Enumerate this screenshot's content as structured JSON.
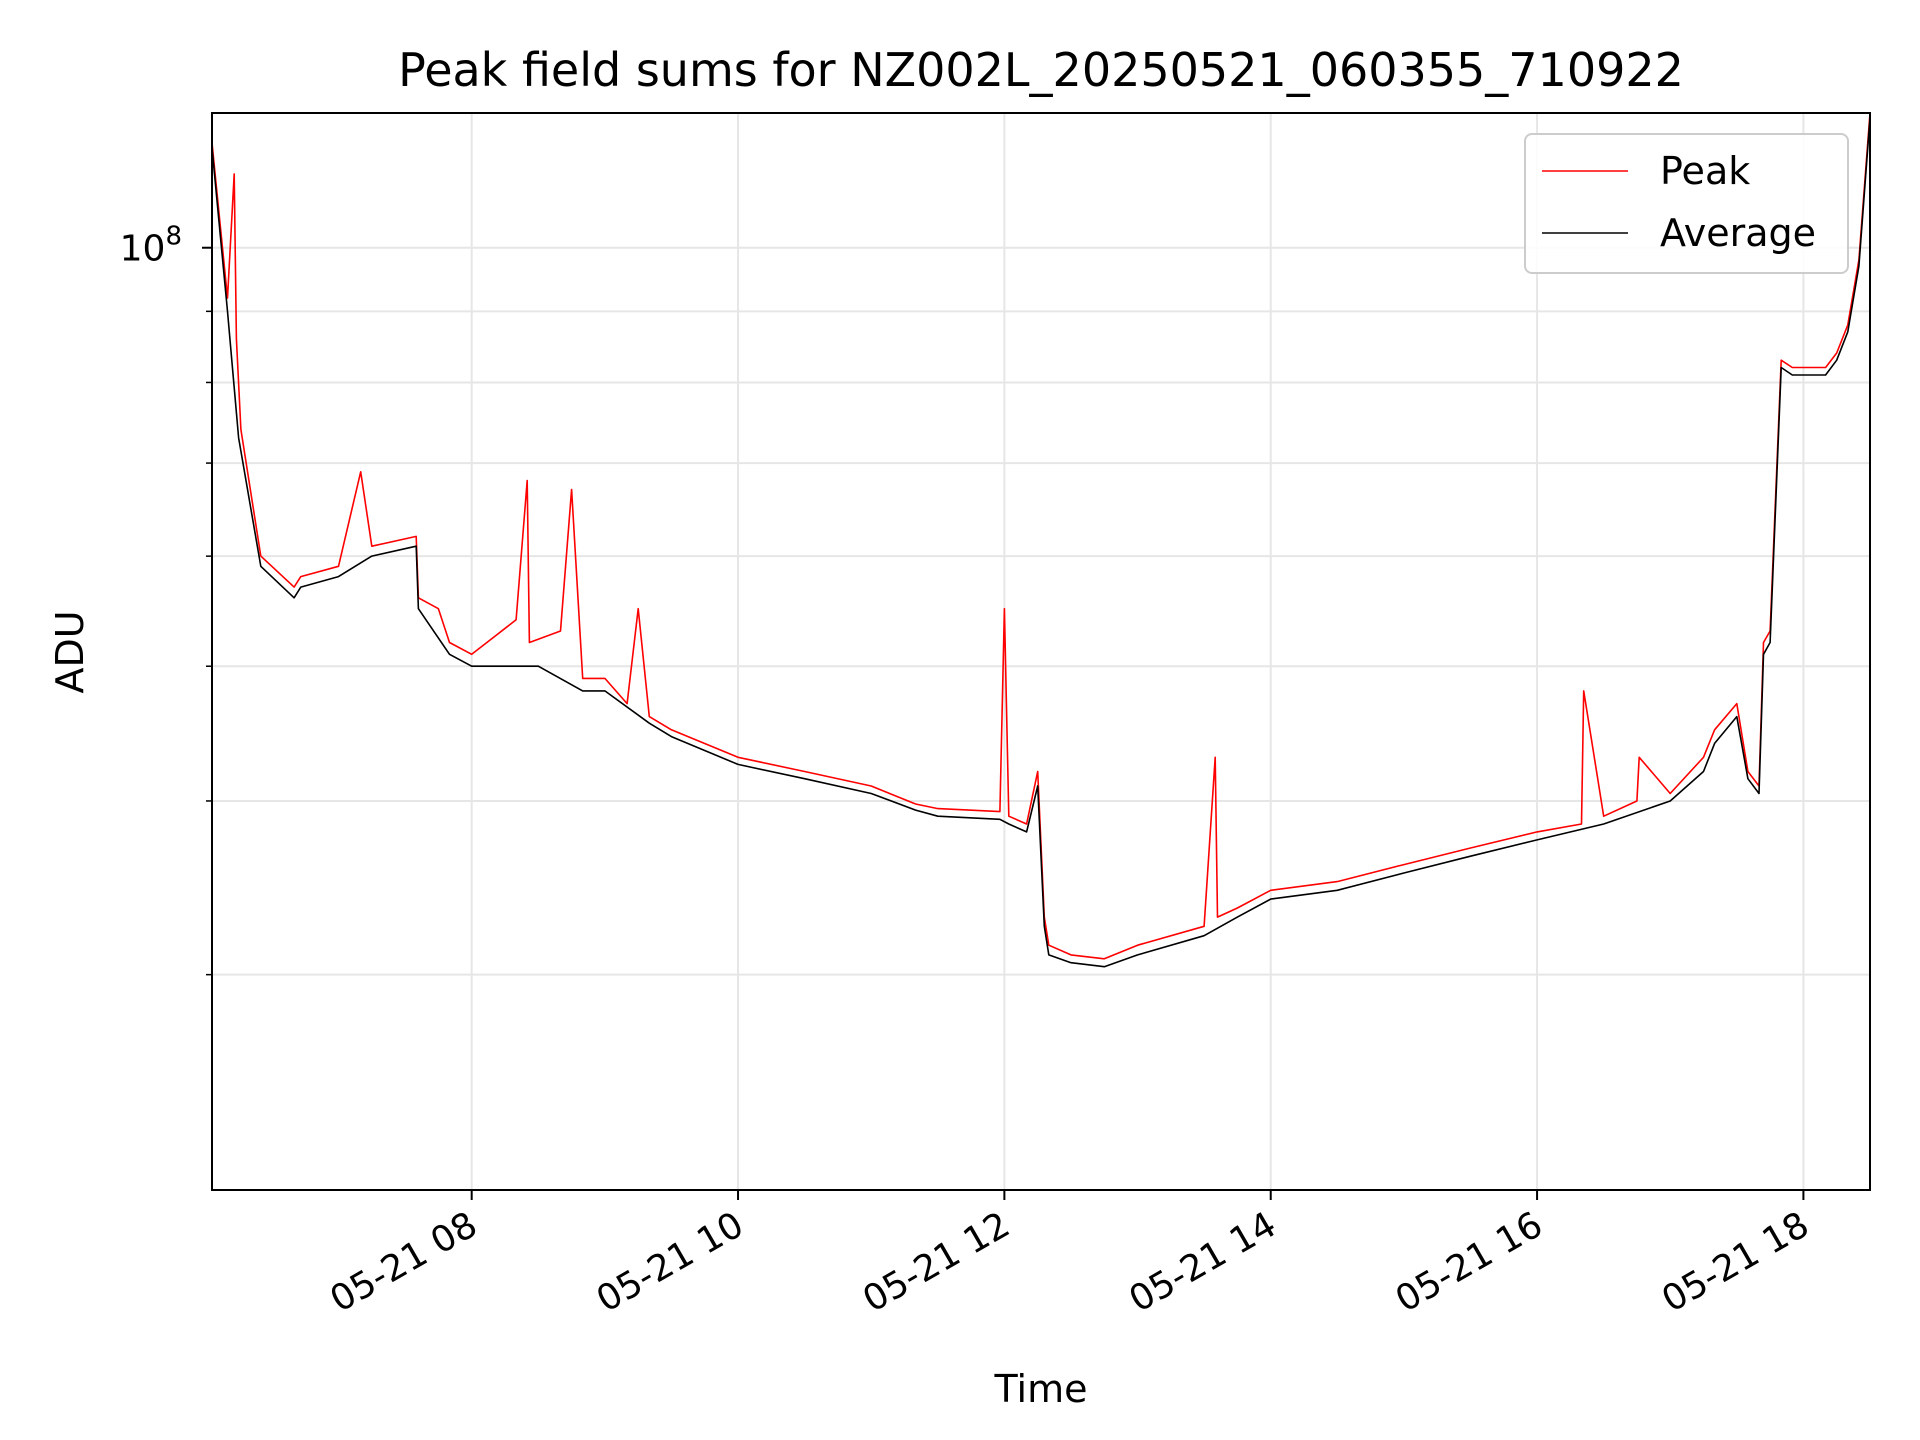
{
  "chart_data": {
    "type": "line",
    "title": "Peak field sums for NZ002L_20250521_060355_710922",
    "xlabel": "Time",
    "ylabel": "ADU",
    "yscale": "log",
    "grid": true,
    "legend_position": "top-right",
    "xlim": [
      "2025-05-21 06:03",
      "2025-05-21 18:30"
    ],
    "ylim": [
      21000000,
      125000000
    ],
    "x_ticks": [
      "05-21 08",
      "05-21 10",
      "05-21 12",
      "05-21 14",
      "05-21 16",
      "05-21 18"
    ],
    "x_tick_values": [
      "2025-05-21 08:00",
      "2025-05-21 10:00",
      "2025-05-21 12:00",
      "2025-05-21 14:00",
      "2025-05-21 16:00",
      "2025-05-21 18:00"
    ],
    "y_major_ticks": [
      {
        "value": 100000000,
        "base": "10",
        "exp": "8"
      }
    ],
    "y_minor_ticks": [
      30000000,
      40000000,
      50000000,
      60000000,
      70000000,
      80000000,
      90000000
    ],
    "series": [
      {
        "name": "Peak",
        "color": "#ff0000",
        "x": [
          "2025-05-21 06:03",
          "2025-05-21 06:10",
          "2025-05-21 06:13",
          "2025-05-21 06:14",
          "2025-05-21 06:16",
          "2025-05-21 06:25",
          "2025-05-21 06:40",
          "2025-05-21 06:43",
          "2025-05-21 07:00",
          "2025-05-21 07:10",
          "2025-05-21 07:15",
          "2025-05-21 07:35",
          "2025-05-21 07:36",
          "2025-05-21 07:45",
          "2025-05-21 07:50",
          "2025-05-21 08:00",
          "2025-05-21 08:20",
          "2025-05-21 08:25",
          "2025-05-21 08:26",
          "2025-05-21 08:40",
          "2025-05-21 08:45",
          "2025-05-21 08:50",
          "2025-05-21 09:00",
          "2025-05-21 09:10",
          "2025-05-21 09:15",
          "2025-05-21 09:20",
          "2025-05-21 09:30",
          "2025-05-21 10:00",
          "2025-05-21 10:30",
          "2025-05-21 11:00",
          "2025-05-21 11:20",
          "2025-05-21 11:30",
          "2025-05-21 11:58",
          "2025-05-21 12:00",
          "2025-05-21 12:02",
          "2025-05-21 12:10",
          "2025-05-21 12:15",
          "2025-05-21 12:18",
          "2025-05-21 12:20",
          "2025-05-21 12:30",
          "2025-05-21 12:45",
          "2025-05-21 13:00",
          "2025-05-21 13:30",
          "2025-05-21 13:35",
          "2025-05-21 13:36",
          "2025-05-21 13:45",
          "2025-05-21 14:00",
          "2025-05-21 14:30",
          "2025-05-21 15:00",
          "2025-05-21 15:30",
          "2025-05-21 16:00",
          "2025-05-21 16:20",
          "2025-05-21 16:21",
          "2025-05-21 16:30",
          "2025-05-21 16:45",
          "2025-05-21 16:46",
          "2025-05-21 17:00",
          "2025-05-21 17:15",
          "2025-05-21 17:20",
          "2025-05-21 17:30",
          "2025-05-21 17:35",
          "2025-05-21 17:40",
          "2025-05-21 17:42",
          "2025-05-21 17:45",
          "2025-05-21 17:50",
          "2025-05-21 17:55",
          "2025-05-21 18:00",
          "2025-05-21 18:05",
          "2025-05-21 18:10",
          "2025-05-21 18:15",
          "2025-05-21 18:20",
          "2025-05-21 18:25",
          "2025-05-21 18:30"
        ],
        "y": [
          119000000,
          92000000,
          113000000,
          86000000,
          74000000,
          60000000,
          57000000,
          58000000,
          59000000,
          69000000,
          61000000,
          62000000,
          56000000,
          55000000,
          52000000,
          51000000,
          54000000,
          68000000,
          52000000,
          53000000,
          67000000,
          49000000,
          49000000,
          47000000,
          55000000,
          46000000,
          45000000,
          43000000,
          42000000,
          41000000,
          39800000,
          39500000,
          39300000,
          55000000,
          39000000,
          38500000,
          42000000,
          33000000,
          31500000,
          31000000,
          30800000,
          31500000,
          32500000,
          43000000,
          33000000,
          33500000,
          34500000,
          35000000,
          36000000,
          37000000,
          38000000,
          38500000,
          48000000,
          39000000,
          40000000,
          43000000,
          40500000,
          43000000,
          45000000,
          47000000,
          42000000,
          41000000,
          52000000,
          53000000,
          83000000,
          82000000,
          82000000,
          82000000,
          82000000,
          84000000,
          88000000,
          98000000,
          125000000
        ]
      },
      {
        "name": "Average",
        "color": "#000000",
        "x": [
          "2025-05-21 06:03",
          "2025-05-21 06:10",
          "2025-05-21 06:15",
          "2025-05-21 06:25",
          "2025-05-21 06:40",
          "2025-05-21 06:43",
          "2025-05-21 07:00",
          "2025-05-21 07:15",
          "2025-05-21 07:35",
          "2025-05-21 07:36",
          "2025-05-21 07:50",
          "2025-05-21 08:00",
          "2025-05-21 08:30",
          "2025-05-21 08:50",
          "2025-05-21 09:00",
          "2025-05-21 09:20",
          "2025-05-21 09:30",
          "2025-05-21 10:00",
          "2025-05-21 10:30",
          "2025-05-21 11:00",
          "2025-05-21 11:20",
          "2025-05-21 11:30",
          "2025-05-21 11:58",
          "2025-05-21 12:02",
          "2025-05-21 12:10",
          "2025-05-21 12:15",
          "2025-05-21 12:18",
          "2025-05-21 12:20",
          "2025-05-21 12:30",
          "2025-05-21 12:45",
          "2025-05-21 13:00",
          "2025-05-21 13:30",
          "2025-05-21 13:45",
          "2025-05-21 14:00",
          "2025-05-21 14:30",
          "2025-05-21 15:00",
          "2025-05-21 15:30",
          "2025-05-21 16:00",
          "2025-05-21 16:30",
          "2025-05-21 17:00",
          "2025-05-21 17:15",
          "2025-05-21 17:20",
          "2025-05-21 17:30",
          "2025-05-21 17:35",
          "2025-05-21 17:40",
          "2025-05-21 17:42",
          "2025-05-21 17:45",
          "2025-05-21 17:50",
          "2025-05-21 17:55",
          "2025-05-21 18:00",
          "2025-05-21 18:05",
          "2025-05-21 18:10",
          "2025-05-21 18:15",
          "2025-05-21 18:20",
          "2025-05-21 18:25",
          "2025-05-21 18:30"
        ],
        "y": [
          118000000,
          90000000,
          73000000,
          59000000,
          56000000,
          57000000,
          58000000,
          60000000,
          61000000,
          55000000,
          51000000,
          50000000,
          50000000,
          48000000,
          48000000,
          45500000,
          44500000,
          42500000,
          41500000,
          40500000,
          39400000,
          39000000,
          38800000,
          38500000,
          38000000,
          41000000,
          32500000,
          31000000,
          30600000,
          30400000,
          31000000,
          32000000,
          33000000,
          34000000,
          34500000,
          35500000,
          36500000,
          37500000,
          38500000,
          40000000,
          42000000,
          44000000,
          46000000,
          41500000,
          40500000,
          51000000,
          52000000,
          82000000,
          81000000,
          81000000,
          81000000,
          81000000,
          83000000,
          87000000,
          97000000,
          124000000
        ]
      }
    ]
  }
}
